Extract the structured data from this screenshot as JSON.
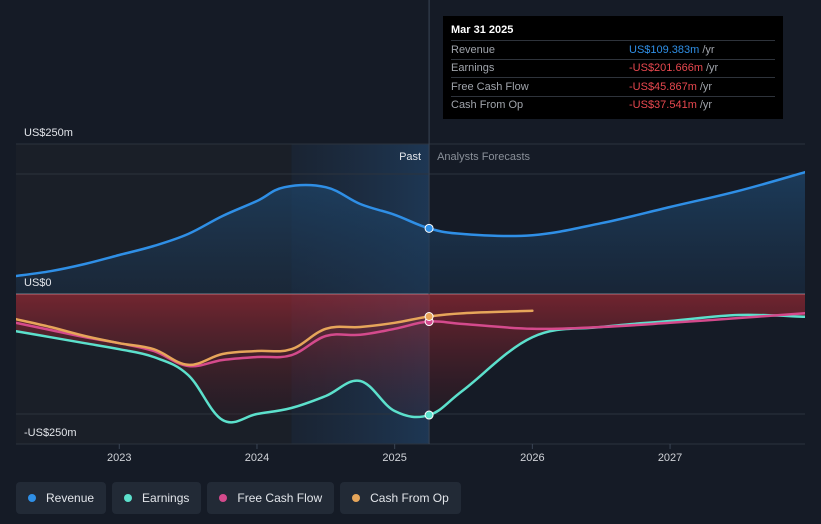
{
  "tooltip": {
    "date": "Mar 31 2025",
    "rows": [
      {
        "label": "Revenue",
        "value": "US$109.383m",
        "unit": "/yr",
        "color": "#2f8fe6"
      },
      {
        "label": "Earnings",
        "value": "-US$201.666m",
        "unit": "/yr",
        "color": "#e8484f"
      },
      {
        "label": "Free Cash Flow",
        "value": "-US$45.867m",
        "unit": "/yr",
        "color": "#e8484f"
      },
      {
        "label": "Cash From Op",
        "value": "-US$37.541m",
        "unit": "/yr",
        "color": "#e8484f"
      }
    ]
  },
  "chart_data": {
    "type": "line",
    "past_label": "Past",
    "forecast_label": "Analysts Forecasts",
    "y_axis_labels": [
      "US$250m",
      "US$0",
      "-US$250m"
    ],
    "ylim": [
      -250,
      250
    ],
    "xlim": [
      2022.25,
      2027.98
    ],
    "x_tick_labels": [
      "2023",
      "2024",
      "2025",
      "2026",
      "2027"
    ],
    "x_ticks": [
      2023,
      2024,
      2025,
      2026,
      2027
    ],
    "past_start": 2024.25,
    "forecast_start": 2025.25,
    "grid": true,
    "series": [
      {
        "name": "Revenue",
        "color": "#2f8fe6",
        "x": [
          2022.25,
          2022.5,
          2022.75,
          2023.0,
          2023.25,
          2023.5,
          2023.75,
          2024.0,
          2024.2,
          2024.5,
          2024.75,
          2025.0,
          2025.25,
          2025.5,
          2026.0,
          2026.5,
          2027.0,
          2027.5,
          2027.98
        ],
        "y": [
          30,
          38,
          50,
          65,
          80,
          100,
          130,
          155,
          178,
          178,
          150,
          132,
          109.4,
          100,
          98,
          118,
          145,
          172,
          203
        ]
      },
      {
        "name": "Earnings",
        "color": "#5ce0cc",
        "x": [
          2022.25,
          2022.5,
          2022.75,
          2023.0,
          2023.25,
          2023.5,
          2023.75,
          2024.0,
          2024.25,
          2024.5,
          2024.75,
          2025.0,
          2025.25,
          2025.5,
          2026.0,
          2026.5,
          2027.0,
          2027.5,
          2027.98
        ],
        "y": [
          -62,
          -72,
          -82,
          -92,
          -105,
          -135,
          -210,
          -200,
          -190,
          -170,
          -145,
          -195,
          -201.7,
          -160,
          -72,
          -55,
          -45,
          -35,
          -38
        ]
      },
      {
        "name": "Free Cash Flow",
        "color": "#d44a8c",
        "x": [
          2022.25,
          2022.5,
          2022.75,
          2023.0,
          2023.25,
          2023.5,
          2023.75,
          2024.0,
          2024.25,
          2024.5,
          2024.75,
          2025.0,
          2025.25,
          2025.5,
          2026.0,
          2026.5,
          2027.0,
          2027.5,
          2027.98
        ],
        "y": [
          -48,
          -60,
          -72,
          -82,
          -95,
          -120,
          -110,
          -105,
          -102,
          -70,
          -68,
          -58,
          -45.9,
          -50,
          -58,
          -55,
          -48,
          -40,
          -32
        ]
      },
      {
        "name": "Cash From Op",
        "color": "#e6a55a",
        "x": [
          2022.25,
          2022.5,
          2022.75,
          2023.0,
          2023.25,
          2023.5,
          2023.75,
          2024.0,
          2024.25,
          2024.5,
          2024.75,
          2025.0,
          2025.25,
          2025.5,
          2026.0
        ],
        "y": [
          -42,
          -55,
          -70,
          -82,
          -92,
          -118,
          -100,
          -95,
          -92,
          -58,
          -55,
          -48,
          -37.5,
          -32,
          -28
        ]
      }
    ]
  },
  "legend": [
    {
      "label": "Revenue",
      "color": "#2f8fe6"
    },
    {
      "label": "Earnings",
      "color": "#5ce0cc"
    },
    {
      "label": "Free Cash Flow",
      "color": "#d44a8c"
    },
    {
      "label": "Cash From Op",
      "color": "#e6a55a"
    }
  ]
}
